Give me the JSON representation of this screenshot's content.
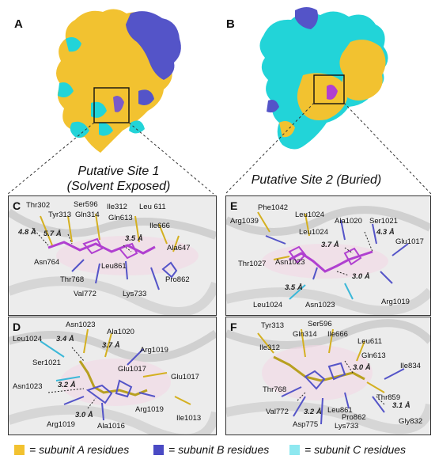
{
  "panels": {
    "A": "A",
    "B": "B",
    "C": "C",
    "D": "D",
    "E": "E",
    "F": "F"
  },
  "site1": {
    "line1": "Putative Site 1",
    "line2": "(Solvent Exposed)"
  },
  "site2": {
    "line1": "Putative Site 2 (Buried)"
  },
  "colors": {
    "subunit_a": "#f2c230",
    "subunit_b": "#4a4ac4",
    "subunit_c": "#22d4d8",
    "ligand": "#b040d0"
  },
  "panel_c": {
    "residues": [
      "Thr302",
      "Tyr313",
      "Ser596",
      "Gln314",
      "Ile312",
      "Gln613",
      "Leu 611",
      "Ile666",
      "Ala647",
      "Asn764",
      "Thr768",
      "Leu861",
      "Val772",
      "Lys733",
      "Pro862"
    ],
    "distances": [
      "4.8 Å",
      "5.7 Å",
      "3.5 Å"
    ]
  },
  "panel_d": {
    "residues": [
      "Asn1023",
      "Leu1024",
      "Ala1020",
      "Arg1019",
      "Ser1021",
      "Glu1017",
      "Glu1017",
      "Asn1023",
      "Arg1019",
      "Arg1019",
      "Ala1016",
      "Ile1013"
    ],
    "distances": [
      "3.4 Å",
      "3.7 Å",
      "3.2 Å",
      "3.0 Å"
    ]
  },
  "panel_e": {
    "residues": [
      "Phe1042",
      "Leu1024",
      "Ala1020",
      "Ser1021",
      "Arg1039",
      "Leu1024",
      "Glu1017",
      "Thr1027",
      "Asn1023",
      "Leu1024",
      "Asn1023",
      "Arg1019"
    ],
    "distances": [
      "3.7 Å",
      "4.3 Å",
      "3.0 Å",
      "3.5 Å"
    ]
  },
  "panel_f": {
    "residues": [
      "Tyr313",
      "Ser596",
      "Gln314",
      "Ile666",
      "Ile312",
      "Leu611",
      "Gln613",
      "Ile834",
      "Thr768",
      "Thr859",
      "Val772",
      "Leu861",
      "Pro862",
      "Asp775",
      "Lys733",
      "Gly832"
    ],
    "distances": [
      "3.0 Å",
      "3.2 Å",
      "3.1 Å"
    ]
  },
  "legend": {
    "a": "= subunit A residues",
    "b": "= subunit B residues",
    "c": "= subunit C residues"
  }
}
